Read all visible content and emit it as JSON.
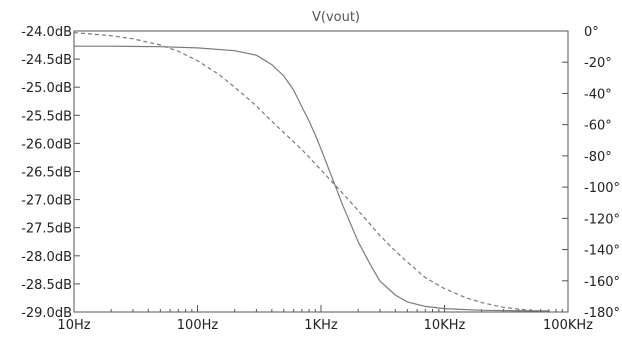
{
  "chart_data": {
    "type": "line",
    "title": "V(vout)",
    "xscale": "log",
    "xlim": [
      10,
      100000
    ],
    "x_ticks": [
      {
        "value": 10,
        "label": "10Hz"
      },
      {
        "value": 100,
        "label": "100Hz"
      },
      {
        "value": 1000,
        "label": "1KHz"
      },
      {
        "value": 10000,
        "label": "10KHz"
      },
      {
        "value": 100000,
        "label": "100KHz"
      }
    ],
    "ylim_left": [
      -29.0,
      -24.0
    ],
    "y_ticks_left": [
      {
        "value": -24.0,
        "label": "-24.0dB"
      },
      {
        "value": -24.5,
        "label": "-24.5dB"
      },
      {
        "value": -25.0,
        "label": "-25.0dB"
      },
      {
        "value": -25.5,
        "label": "-25.5dB"
      },
      {
        "value": -26.0,
        "label": "-26.0dB"
      },
      {
        "value": -26.5,
        "label": "-26.5dB"
      },
      {
        "value": -27.0,
        "label": "-27.0dB"
      },
      {
        "value": -27.5,
        "label": "-27.5dB"
      },
      {
        "value": -28.0,
        "label": "-28.0dB"
      },
      {
        "value": -28.5,
        "label": "-28.5dB"
      },
      {
        "value": -29.0,
        "label": "-29.0dB"
      }
    ],
    "ylim_right": [
      -180,
      0
    ],
    "y_ticks_right": [
      {
        "value": 0,
        "label": "0°"
      },
      {
        "value": -20,
        "label": "-20°"
      },
      {
        "value": -40,
        "label": "-40°"
      },
      {
        "value": -60,
        "label": "-60°"
      },
      {
        "value": -80,
        "label": "-80°"
      },
      {
        "value": -100,
        "label": "-100°"
      },
      {
        "value": -120,
        "label": "-120°"
      },
      {
        "value": -140,
        "label": "-140°"
      },
      {
        "value": -160,
        "label": "-160°"
      },
      {
        "value": -180,
        "label": "-180°"
      }
    ],
    "grid": false,
    "series": [
      {
        "axis": "left",
        "style": "solid",
        "color": "#7a7a7a",
        "x": [
          10,
          20,
          50,
          100,
          200,
          300,
          400,
          500,
          600,
          700,
          800,
          900,
          1000,
          1200,
          1500,
          2000,
          2500,
          3000,
          4000,
          5000,
          7000,
          10000,
          20000,
          50000,
          70000
        ],
        "y": [
          -24.27,
          -24.27,
          -24.28,
          -24.3,
          -24.35,
          -24.43,
          -24.6,
          -24.8,
          -25.05,
          -25.35,
          -25.6,
          -25.85,
          -26.1,
          -26.55,
          -27.1,
          -27.75,
          -28.15,
          -28.45,
          -28.7,
          -28.82,
          -28.9,
          -28.94,
          -28.97,
          -28.98,
          -28.98
        ]
      },
      {
        "axis": "right",
        "style": "dashed",
        "color": "#7a7a7a",
        "x": [
          10,
          20,
          30,
          50,
          70,
          100,
          150,
          200,
          300,
          400,
          500,
          700,
          1000,
          1500,
          2000,
          3000,
          4000,
          5000,
          7000,
          10000,
          15000,
          20000,
          30000,
          50000,
          70000
        ],
        "y": [
          -1,
          -3,
          -5,
          -9,
          -13,
          -19,
          -28,
          -36,
          -48,
          -58,
          -65,
          -76,
          -89,
          -104,
          -115,
          -131,
          -141,
          -148,
          -158,
          -165,
          -171,
          -174,
          -177,
          -179,
          -180
        ]
      }
    ]
  }
}
